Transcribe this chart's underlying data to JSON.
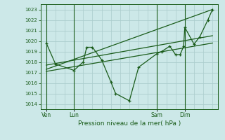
{
  "bg_color": "#cce8e8",
  "grid_color": "#aacccc",
  "line_color": "#1a5c1a",
  "title": "Pression niveau de la mer( hPa )",
  "ylim": [
    1013.5,
    1023.5
  ],
  "yticks": [
    1014,
    1015,
    1016,
    1017,
    1018,
    1019,
    1020,
    1021,
    1022,
    1023
  ],
  "xtick_labels": [
    "Ven",
    "Lun",
    "Sam",
    "Dim"
  ],
  "xtick_positions": [
    0,
    24,
    96,
    120
  ],
  "vlines": [
    0,
    24,
    96,
    120
  ],
  "data_x": [
    0,
    8,
    24,
    32,
    35,
    40,
    48,
    56,
    60,
    72,
    80,
    96,
    100,
    107,
    112,
    116,
    119,
    120,
    128,
    133,
    140,
    144
  ],
  "data_y": [
    1019.8,
    1017.8,
    1017.2,
    1018.0,
    1019.4,
    1019.4,
    1018.2,
    1016.1,
    1015.0,
    1014.3,
    1017.5,
    1018.8,
    1019.0,
    1019.5,
    1018.7,
    1018.7,
    1019.5,
    1021.3,
    1019.7,
    1020.4,
    1022.0,
    1023.0
  ],
  "trend1_x": [
    0,
    144
  ],
  "trend1_y": [
    1017.3,
    1023.0
  ],
  "trend2_x": [
    0,
    144
  ],
  "trend2_y": [
    1017.1,
    1019.8
  ],
  "trend3_x": [
    0,
    144
  ],
  "trend3_y": [
    1017.7,
    1020.5
  ],
  "xlim": [
    -5,
    149
  ]
}
